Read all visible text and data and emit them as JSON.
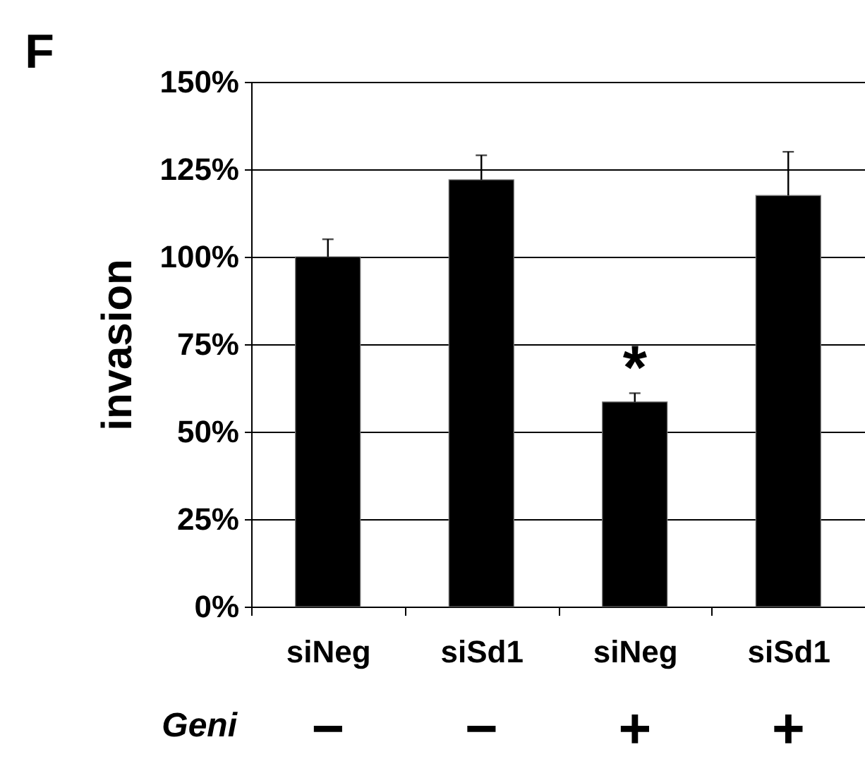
{
  "chart_data": {
    "type": "bar",
    "ylabel": "invasion",
    "categories": [
      "siNeg",
      "siSd1",
      "siNeg",
      "siSd1"
    ],
    "values": [
      100,
      122,
      58.5,
      117.5
    ],
    "color": "#000000",
    "errors": [
      [
        100,
        105
      ],
      [
        122,
        129
      ],
      [
        58.5,
        61
      ],
      [
        117.5,
        130
      ]
    ],
    "ylim": [
      0,
      150
    ],
    "yticks": [
      {
        "value": 0,
        "label": "0%"
      },
      {
        "value": 25,
        "label": "25%"
      },
      {
        "value": 50,
        "label": "50%"
      },
      {
        "value": 75,
        "label": "75%"
      },
      {
        "value": 100,
        "label": "100%"
      },
      {
        "value": 125,
        "label": "125%"
      },
      {
        "value": 150,
        "label": "150%"
      }
    ],
    "grid": "y",
    "annotations": [
      "F",
      "*",
      "Geni",
      "−",
      "−",
      "+",
      "+"
    ]
  }
}
